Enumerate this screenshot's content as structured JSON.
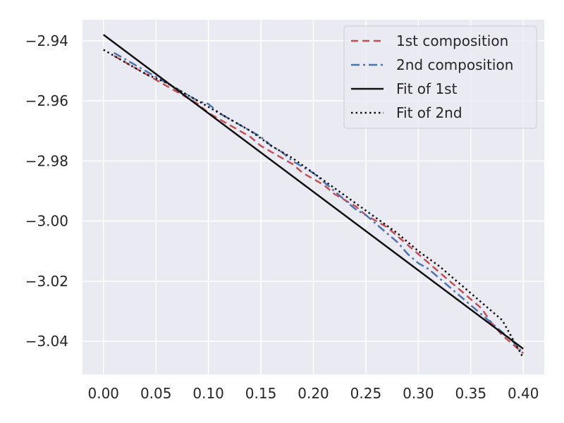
{
  "chart_data": {
    "type": "line",
    "title": "",
    "xlabel": "",
    "ylabel": "",
    "xlim": [
      -0.02,
      0.42
    ],
    "ylim": [
      -3.051,
      -2.933
    ],
    "grid": true,
    "legend_position": "top-right",
    "x_ticks": [
      {
        "value": 0.0,
        "label": "0.00"
      },
      {
        "value": 0.05,
        "label": "0.05"
      },
      {
        "value": 0.1,
        "label": "0.10"
      },
      {
        "value": 0.15,
        "label": "0.15"
      },
      {
        "value": 0.2,
        "label": "0.20"
      },
      {
        "value": 0.25,
        "label": "0.25"
      },
      {
        "value": 0.3,
        "label": "0.30"
      },
      {
        "value": 0.35,
        "label": "0.35"
      },
      {
        "value": 0.4,
        "label": "0.40"
      }
    ],
    "y_ticks": [
      {
        "value": -2.94,
        "label": "−2.94"
      },
      {
        "value": -2.96,
        "label": "−2.96"
      },
      {
        "value": -2.98,
        "label": "−2.98"
      },
      {
        "value": -3.0,
        "label": "−3.00"
      },
      {
        "value": -3.02,
        "label": "−3.02"
      },
      {
        "value": -3.04,
        "label": "−3.04"
      }
    ],
    "series": [
      {
        "name": "1st composition",
        "color": "#c44e52",
        "style": "dashed",
        "x": [
          0.01,
          0.02,
          0.03,
          0.04,
          0.05,
          0.06,
          0.07,
          0.08,
          0.09,
          0.1,
          0.11,
          0.12,
          0.13,
          0.14,
          0.15,
          0.16,
          0.17,
          0.18,
          0.19,
          0.2,
          0.21,
          0.22,
          0.23,
          0.24,
          0.25,
          0.26,
          0.27,
          0.28,
          0.29,
          0.3,
          0.31,
          0.32,
          0.33,
          0.34,
          0.35,
          0.36,
          0.37,
          0.38,
          0.39,
          0.4
        ],
        "y": [
          -2.945,
          -2.947,
          -2.949,
          -2.951,
          -2.953,
          -2.955,
          -2.957,
          -2.959,
          -2.961,
          -2.964,
          -2.966,
          -2.968,
          -2.97,
          -2.972,
          -2.975,
          -2.977,
          -2.979,
          -2.981,
          -2.984,
          -2.986,
          -2.988,
          -2.991,
          -2.993,
          -2.995,
          -2.998,
          -3.0,
          -3.002,
          -3.005,
          -3.008,
          -3.011,
          -3.014,
          -3.017,
          -3.02,
          -3.023,
          -3.026,
          -3.029,
          -3.034,
          -3.038,
          -3.041,
          -3.044
        ]
      },
      {
        "name": "2nd composition",
        "color": "#4c72b0",
        "style": "dashdot",
        "x": [
          0.01,
          0.02,
          0.03,
          0.04,
          0.05,
          0.06,
          0.07,
          0.08,
          0.09,
          0.1,
          0.11,
          0.12,
          0.13,
          0.14,
          0.15,
          0.16,
          0.17,
          0.18,
          0.19,
          0.2,
          0.21,
          0.22,
          0.23,
          0.24,
          0.25,
          0.26,
          0.27,
          0.28,
          0.29,
          0.3,
          0.31,
          0.32,
          0.33,
          0.34,
          0.35,
          0.36,
          0.37,
          0.38,
          0.39,
          0.4
        ],
        "y": [
          -2.944,
          -2.946,
          -2.948,
          -2.95,
          -2.952,
          -2.954,
          -2.956,
          -2.958,
          -2.96,
          -2.961,
          -2.964,
          -2.966,
          -2.968,
          -2.97,
          -2.972,
          -2.975,
          -2.977,
          -2.98,
          -2.982,
          -2.984,
          -2.987,
          -2.99,
          -2.993,
          -2.996,
          -2.998,
          -3.001,
          -3.004,
          -3.007,
          -3.011,
          -3.014,
          -3.016,
          -3.019,
          -3.022,
          -3.025,
          -3.028,
          -3.031,
          -3.034,
          -3.037,
          -3.04,
          -3.044
        ]
      },
      {
        "name": "Fit of 1st",
        "color": "#111111",
        "style": "solid",
        "x": [
          0.0,
          0.4
        ],
        "y": [
          -2.938,
          -3.0425
        ]
      },
      {
        "name": "Fit of 2nd",
        "color": "#111111",
        "style": "dotted",
        "x": [
          0.0,
          0.02,
          0.04,
          0.06,
          0.08,
          0.1,
          0.12,
          0.14,
          0.16,
          0.18,
          0.2,
          0.22,
          0.24,
          0.26,
          0.28,
          0.3,
          0.32,
          0.34,
          0.36,
          0.38,
          0.4
        ],
        "y": [
          -2.943,
          -2.947,
          -2.951,
          -2.954,
          -2.958,
          -2.962,
          -2.966,
          -2.97,
          -2.975,
          -2.979,
          -2.984,
          -2.989,
          -2.994,
          -2.999,
          -3.004,
          -3.01,
          -3.015,
          -3.021,
          -3.027,
          -3.033,
          -3.0455
        ]
      }
    ]
  }
}
